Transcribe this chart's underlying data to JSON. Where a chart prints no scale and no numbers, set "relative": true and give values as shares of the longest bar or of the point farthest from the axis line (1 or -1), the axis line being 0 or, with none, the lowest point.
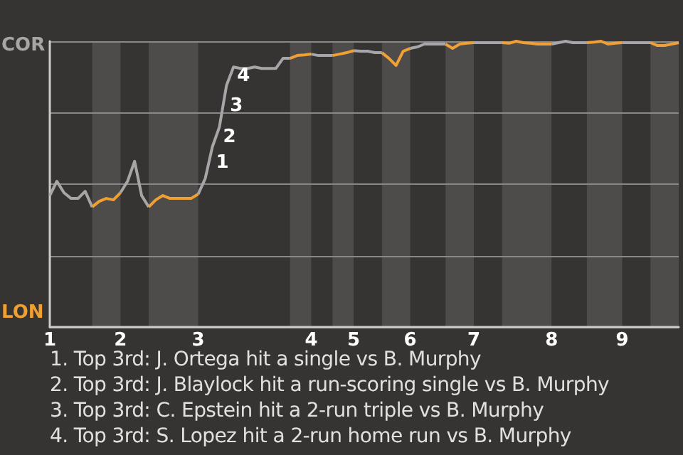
{
  "chart_data": {
    "type": "line",
    "relative": true,
    "categories": [
      "1",
      null,
      null,
      null,
      null,
      null,
      null,
      null,
      null,
      null,
      "2",
      null,
      null,
      null,
      null,
      null,
      null,
      null,
      null,
      null,
      null,
      "3",
      null,
      null,
      null,
      null,
      null,
      null,
      null,
      null,
      null,
      null,
      null,
      null,
      null,
      null,
      null,
      "4",
      null,
      null,
      null,
      null,
      null,
      "5",
      null,
      null,
      null,
      null,
      null,
      null,
      null,
      "6",
      null,
      null,
      null,
      null,
      null,
      null,
      null,
      null,
      "7",
      null,
      null,
      null,
      null,
      null,
      null,
      null,
      null,
      null,
      null,
      "8",
      null,
      null,
      null,
      null,
      null,
      null,
      null,
      null,
      null,
      "9",
      null,
      null,
      null,
      null,
      null,
      null,
      null,
      null
    ],
    "grid": "y",
    "series": [
      {
        "name": "COR",
        "color": "#a6a6a6",
        "values": [
          0.46,
          0.51,
          0.47,
          0.45,
          0.45,
          0.475,
          0.42,
          null,
          null,
          null,
          null,
          null,
          null,
          null,
          null,
          null,
          null,
          null,
          null,
          null,
          null,
          null,
          null,
          null,
          null,
          null,
          null,
          null,
          null,
          null,
          null,
          null,
          null,
          null,
          null,
          null,
          null,
          null,
          null,
          null,
          null,
          null,
          null,
          null,
          null,
          null,
          null,
          null,
          null,
          null,
          null,
          null,
          null,
          null,
          null,
          null,
          null,
          null,
          null,
          null,
          null,
          null,
          null,
          null,
          null,
          null,
          null,
          null,
          null,
          null,
          null,
          null,
          null,
          null,
          null,
          null,
          null,
          null,
          null,
          null,
          null,
          null,
          null,
          null,
          null,
          null,
          null,
          null,
          null,
          null
        ]
      },
      {
        "name": "LON",
        "color": "#f0a030",
        "values": [
          null,
          null,
          null,
          null,
          null,
          null,
          0.42,
          0.44,
          0.45,
          0.445,
          0.47,
          null,
          null,
          null,
          null,
          null,
          null,
          null,
          null,
          null,
          null,
          null,
          null,
          null,
          null,
          null,
          null,
          null,
          null,
          null,
          null,
          null,
          null,
          null,
          null,
          null,
          null,
          null,
          null,
          null,
          null,
          null,
          null,
          null,
          null,
          null,
          null,
          null,
          null,
          null,
          null,
          null,
          null,
          null,
          null,
          null,
          null,
          null,
          null,
          null,
          null,
          null,
          null,
          null,
          null,
          null,
          null,
          null,
          null,
          null,
          null,
          null,
          null,
          null,
          null,
          null,
          null,
          null,
          null,
          null,
          null,
          null,
          null,
          null,
          null,
          null,
          null,
          null,
          null,
          null
        ]
      },
      {
        "color": "#a6a6a7",
        "values": [
          null,
          null,
          null,
          null,
          null,
          null,
          null,
          null,
          null,
          null,
          0.47,
          0.51,
          0.58,
          0.46,
          0.42,
          null,
          null,
          null,
          null,
          null,
          null,
          null,
          null,
          null,
          null,
          null,
          null,
          null,
          null,
          null,
          null,
          null,
          null,
          null,
          null,
          null,
          null,
          null,
          null,
          null,
          null,
          null,
          null,
          null,
          null,
          null,
          null,
          null,
          null,
          null,
          null,
          null,
          null,
          null,
          null,
          null,
          null,
          null,
          null,
          null,
          null,
          null,
          null,
          null,
          null,
          null,
          null,
          null,
          null,
          null,
          null,
          null,
          null,
          null,
          null,
          null,
          null,
          null,
          null,
          null,
          null,
          null,
          null,
          null,
          null,
          null,
          null,
          null,
          null,
          null
        ]
      },
      {
        "color": "#f0a031",
        "values": [
          null,
          null,
          null,
          null,
          null,
          null,
          null,
          null,
          null,
          null,
          null,
          null,
          null,
          null,
          0.42,
          0.445,
          0.46,
          0.45,
          0.45,
          0.45,
          0.45,
          0.465,
          null,
          null,
          null,
          null,
          null,
          null,
          null,
          null,
          null,
          null,
          null,
          null,
          null,
          null,
          null,
          null,
          null,
          null,
          null,
          null,
          null,
          null,
          null,
          null,
          null,
          null,
          null,
          null,
          null,
          null,
          null,
          null,
          null,
          null,
          null,
          null,
          null,
          null,
          null,
          null,
          null,
          null,
          null,
          null,
          null,
          null,
          null,
          null,
          null,
          null,
          null,
          null,
          null,
          null,
          null,
          null,
          null,
          null,
          null,
          null,
          null,
          null,
          null,
          null,
          null,
          null,
          null,
          null
        ]
      },
      {
        "color": "#a6a6a8",
        "values": [
          null,
          null,
          null,
          null,
          null,
          null,
          null,
          null,
          null,
          null,
          null,
          null,
          null,
          null,
          null,
          null,
          null,
          null,
          null,
          null,
          null,
          0.465,
          0.52,
          0.63,
          0.7,
          0.845,
          0.91,
          0.905,
          0.905,
          0.91,
          0.905,
          0.905,
          0.905,
          0.94,
          0.94,
          null,
          null,
          null,
          null,
          null,
          null,
          null,
          null,
          null,
          null,
          null,
          null,
          null,
          null,
          null,
          null,
          null,
          null,
          null,
          null,
          null,
          null,
          null,
          null,
          null,
          null,
          null,
          null,
          null,
          null,
          null,
          null,
          null,
          null,
          null,
          null,
          null,
          null,
          null,
          null,
          null,
          null,
          null,
          null,
          null,
          null,
          null,
          null,
          null,
          null,
          null,
          null,
          null,
          null,
          null
        ]
      },
      {
        "color": "#f0a032",
        "values": [
          null,
          null,
          null,
          null,
          null,
          null,
          null,
          null,
          null,
          null,
          null,
          null,
          null,
          null,
          null,
          null,
          null,
          null,
          null,
          null,
          null,
          null,
          null,
          null,
          null,
          null,
          null,
          null,
          null,
          null,
          null,
          null,
          null,
          null,
          0.94,
          0.95,
          0.952,
          0.955,
          null,
          null,
          null,
          null,
          null,
          null,
          null,
          null,
          null,
          null,
          null,
          null,
          null,
          null,
          null,
          null,
          null,
          null,
          null,
          null,
          null,
          null,
          null,
          null,
          null,
          null,
          null,
          null,
          null,
          null,
          null,
          null,
          null,
          null,
          null,
          null,
          null,
          null,
          null,
          null,
          null,
          null,
          null,
          null,
          null,
          null,
          null,
          null,
          null,
          null,
          null,
          null
        ]
      },
      {
        "color": "#a6a6a9",
        "values": [
          null,
          null,
          null,
          null,
          null,
          null,
          null,
          null,
          null,
          null,
          null,
          null,
          null,
          null,
          null,
          null,
          null,
          null,
          null,
          null,
          null,
          null,
          null,
          null,
          null,
          null,
          null,
          null,
          null,
          null,
          null,
          null,
          null,
          null,
          null,
          null,
          null,
          0.955,
          0.95,
          0.95,
          0.95,
          null,
          null,
          null,
          null,
          null,
          null,
          null,
          null,
          null,
          null,
          null,
          null,
          null,
          null,
          null,
          null,
          null,
          null,
          null,
          null,
          null,
          null,
          null,
          null,
          null,
          null,
          null,
          null,
          null,
          null,
          null,
          null,
          null,
          null,
          null,
          null,
          null,
          null,
          null,
          null,
          null,
          null,
          null,
          null,
          null,
          null,
          null,
          null,
          null
        ]
      },
      {
        "color": "#f0a033",
        "values": [
          null,
          null,
          null,
          null,
          null,
          null,
          null,
          null,
          null,
          null,
          null,
          null,
          null,
          null,
          null,
          null,
          null,
          null,
          null,
          null,
          null,
          null,
          null,
          null,
          null,
          null,
          null,
          null,
          null,
          null,
          null,
          null,
          null,
          null,
          null,
          null,
          null,
          null,
          null,
          null,
          0.95,
          0.955,
          0.96,
          0.967,
          null,
          null,
          null,
          null,
          null,
          null,
          null,
          null,
          null,
          null,
          null,
          null,
          null,
          null,
          null,
          null,
          null,
          null,
          null,
          null,
          null,
          null,
          null,
          null,
          null,
          null,
          null,
          null,
          null,
          null,
          null,
          null,
          null,
          null,
          null,
          null,
          null,
          null,
          null,
          null,
          null,
          null,
          null,
          null,
          null,
          null
        ]
      },
      {
        "color": "#a6a6aa",
        "values": [
          null,
          null,
          null,
          null,
          null,
          null,
          null,
          null,
          null,
          null,
          null,
          null,
          null,
          null,
          null,
          null,
          null,
          null,
          null,
          null,
          null,
          null,
          null,
          null,
          null,
          null,
          null,
          null,
          null,
          null,
          null,
          null,
          null,
          null,
          null,
          null,
          null,
          null,
          null,
          null,
          null,
          null,
          null,
          0.967,
          0.965,
          0.965,
          0.96,
          0.96,
          null,
          null,
          null,
          null,
          null,
          null,
          null,
          null,
          null,
          null,
          null,
          null,
          null,
          null,
          null,
          null,
          null,
          null,
          null,
          null,
          null,
          null,
          null,
          null,
          null,
          null,
          null,
          null,
          null,
          null,
          null,
          null,
          null,
          null,
          null,
          null,
          null,
          null,
          null,
          null,
          null,
          null
        ]
      },
      {
        "color": "#f0a034",
        "values": [
          null,
          null,
          null,
          null,
          null,
          null,
          null,
          null,
          null,
          null,
          null,
          null,
          null,
          null,
          null,
          null,
          null,
          null,
          null,
          null,
          null,
          null,
          null,
          null,
          null,
          null,
          null,
          null,
          null,
          null,
          null,
          null,
          null,
          null,
          null,
          null,
          null,
          null,
          null,
          null,
          null,
          null,
          null,
          null,
          null,
          null,
          null,
          0.96,
          0.94,
          0.915,
          0.965,
          0.975,
          null,
          null,
          null,
          null,
          null,
          null,
          null,
          null,
          null,
          null,
          null,
          null,
          null,
          null,
          null,
          null,
          null,
          null,
          null,
          null,
          null,
          null,
          null,
          null,
          null,
          null,
          null,
          null,
          null,
          null,
          null,
          null,
          null,
          null,
          null,
          null,
          null,
          null
        ]
      },
      {
        "color": "#a6a6ab",
        "values": [
          null,
          null,
          null,
          null,
          null,
          null,
          null,
          null,
          null,
          null,
          null,
          null,
          null,
          null,
          null,
          null,
          null,
          null,
          null,
          null,
          null,
          null,
          null,
          null,
          null,
          null,
          null,
          null,
          null,
          null,
          null,
          null,
          null,
          null,
          null,
          null,
          null,
          null,
          null,
          null,
          null,
          null,
          null,
          null,
          null,
          null,
          null,
          null,
          null,
          null,
          null,
          0.975,
          0.98,
          0.99,
          0.99,
          0.99,
          0.99,
          null,
          null,
          null,
          null,
          null,
          null,
          null,
          null,
          null,
          null,
          null,
          null,
          null,
          null,
          null,
          null,
          null,
          null,
          null,
          null,
          null,
          null,
          null,
          null,
          null,
          null,
          null,
          null,
          null,
          null,
          null,
          null,
          null
        ]
      },
      {
        "color": "#f0a035",
        "values": [
          null,
          null,
          null,
          null,
          null,
          null,
          null,
          null,
          null,
          null,
          null,
          null,
          null,
          null,
          null,
          null,
          null,
          null,
          null,
          null,
          null,
          null,
          null,
          null,
          null,
          null,
          null,
          null,
          null,
          null,
          null,
          null,
          null,
          null,
          null,
          null,
          null,
          null,
          null,
          null,
          null,
          null,
          null,
          null,
          null,
          null,
          null,
          null,
          null,
          null,
          null,
          null,
          null,
          null,
          null,
          null,
          0.99,
          0.975,
          0.99,
          0.993,
          0.995,
          null,
          null,
          null,
          null,
          null,
          null,
          null,
          null,
          null,
          null,
          null,
          null,
          null,
          null,
          null,
          null,
          null,
          null,
          null,
          null,
          null,
          null,
          null,
          null,
          null,
          null,
          null,
          null,
          null
        ]
      },
      {
        "color": "#a6a6ac",
        "values": [
          null,
          null,
          null,
          null,
          null,
          null,
          null,
          null,
          null,
          null,
          null,
          null,
          null,
          null,
          null,
          null,
          null,
          null,
          null,
          null,
          null,
          null,
          null,
          null,
          null,
          null,
          null,
          null,
          null,
          null,
          null,
          null,
          null,
          null,
          null,
          null,
          null,
          null,
          null,
          null,
          null,
          null,
          null,
          null,
          null,
          null,
          null,
          null,
          null,
          null,
          null,
          null,
          null,
          null,
          null,
          null,
          null,
          null,
          null,
          null,
          0.995,
          0.995,
          0.995,
          0.995,
          0.995,
          null,
          null,
          null,
          null,
          null,
          null,
          null,
          null,
          null,
          null,
          null,
          null,
          null,
          null,
          null,
          null,
          null,
          null,
          null,
          null,
          null,
          null,
          null,
          null,
          null
        ]
      },
      {
        "color": "#f0a036",
        "values": [
          null,
          null,
          null,
          null,
          null,
          null,
          null,
          null,
          null,
          null,
          null,
          null,
          null,
          null,
          null,
          null,
          null,
          null,
          null,
          null,
          null,
          null,
          null,
          null,
          null,
          null,
          null,
          null,
          null,
          null,
          null,
          null,
          null,
          null,
          null,
          null,
          null,
          null,
          null,
          null,
          null,
          null,
          null,
          null,
          null,
          null,
          null,
          null,
          null,
          null,
          null,
          null,
          null,
          null,
          null,
          null,
          null,
          null,
          null,
          null,
          null,
          null,
          null,
          null,
          0.995,
          0.993,
          1,
          0.995,
          0.993,
          0.99,
          0.99,
          0.99,
          null,
          null,
          null,
          null,
          null,
          null,
          null,
          null,
          null,
          null,
          null,
          null,
          null,
          null,
          null,
          null,
          null,
          null
        ]
      },
      {
        "color": "#a6a6ad",
        "values": [
          null,
          null,
          null,
          null,
          null,
          null,
          null,
          null,
          null,
          null,
          null,
          null,
          null,
          null,
          null,
          null,
          null,
          null,
          null,
          null,
          null,
          null,
          null,
          null,
          null,
          null,
          null,
          null,
          null,
          null,
          null,
          null,
          null,
          null,
          null,
          null,
          null,
          null,
          null,
          null,
          null,
          null,
          null,
          null,
          null,
          null,
          null,
          null,
          null,
          null,
          null,
          null,
          null,
          null,
          null,
          null,
          null,
          null,
          null,
          null,
          null,
          null,
          null,
          null,
          null,
          null,
          null,
          null,
          null,
          null,
          null,
          0.99,
          0.995,
          1,
          0.995,
          0.995,
          0.995,
          null,
          null,
          null,
          null,
          null,
          null,
          null,
          null,
          null,
          null,
          null,
          null,
          null
        ]
      },
      {
        "color": "#f0a037",
        "values": [
          null,
          null,
          null,
          null,
          null,
          null,
          null,
          null,
          null,
          null,
          null,
          null,
          null,
          null,
          null,
          null,
          null,
          null,
          null,
          null,
          null,
          null,
          null,
          null,
          null,
          null,
          null,
          null,
          null,
          null,
          null,
          null,
          null,
          null,
          null,
          null,
          null,
          null,
          null,
          null,
          null,
          null,
          null,
          null,
          null,
          null,
          null,
          null,
          null,
          null,
          null,
          null,
          null,
          null,
          null,
          null,
          null,
          null,
          null,
          null,
          null,
          null,
          null,
          null,
          null,
          null,
          null,
          null,
          null,
          null,
          null,
          null,
          null,
          null,
          null,
          null,
          0.995,
          0.997,
          1,
          0.99,
          0.993,
          0.995,
          null,
          null,
          null,
          null,
          null,
          null,
          null,
          null
        ]
      },
      {
        "color": "#a6a6ae",
        "values": [
          null,
          null,
          null,
          null,
          null,
          null,
          null,
          null,
          null,
          null,
          null,
          null,
          null,
          null,
          null,
          null,
          null,
          null,
          null,
          null,
          null,
          null,
          null,
          null,
          null,
          null,
          null,
          null,
          null,
          null,
          null,
          null,
          null,
          null,
          null,
          null,
          null,
          null,
          null,
          null,
          null,
          null,
          null,
          null,
          null,
          null,
          null,
          null,
          null,
          null,
          null,
          null,
          null,
          null,
          null,
          null,
          null,
          null,
          null,
          null,
          null,
          null,
          null,
          null,
          null,
          null,
          null,
          null,
          null,
          null,
          null,
          null,
          null,
          null,
          null,
          null,
          null,
          null,
          null,
          null,
          null,
          0.995,
          0.995,
          0.995,
          0.995,
          0.995,
          null,
          null,
          null,
          null
        ]
      },
      {
        "color": "#f0a038",
        "values": [
          null,
          null,
          null,
          null,
          null,
          null,
          null,
          null,
          null,
          null,
          null,
          null,
          null,
          null,
          null,
          null,
          null,
          null,
          null,
          null,
          null,
          null,
          null,
          null,
          null,
          null,
          null,
          null,
          null,
          null,
          null,
          null,
          null,
          null,
          null,
          null,
          null,
          null,
          null,
          null,
          null,
          null,
          null,
          null,
          null,
          null,
          null,
          null,
          null,
          null,
          null,
          null,
          null,
          null,
          null,
          null,
          null,
          null,
          null,
          null,
          null,
          null,
          null,
          null,
          null,
          null,
          null,
          null,
          null,
          null,
          null,
          null,
          null,
          null,
          null,
          null,
          null,
          null,
          null,
          null,
          null,
          null,
          null,
          null,
          null,
          0.995,
          0.985,
          0.985,
          0.99,
          0.995
        ]
      }
    ],
    "annotations": [
      "1",
      "2",
      "3",
      "4",
      "1. Top 3rd: J. Ortega hit a single vs B. Murphy",
      "2. Top 3rd: J. Blaylock hit a run-scoring single vs B. Murphy",
      "3. Top 3rd: C. Epstein hit a 2-run triple vs B. Murphy",
      "4. Top 3rd: S. Lopez hit a 2-run home run vs B. Murphy"
    ]
  }
}
